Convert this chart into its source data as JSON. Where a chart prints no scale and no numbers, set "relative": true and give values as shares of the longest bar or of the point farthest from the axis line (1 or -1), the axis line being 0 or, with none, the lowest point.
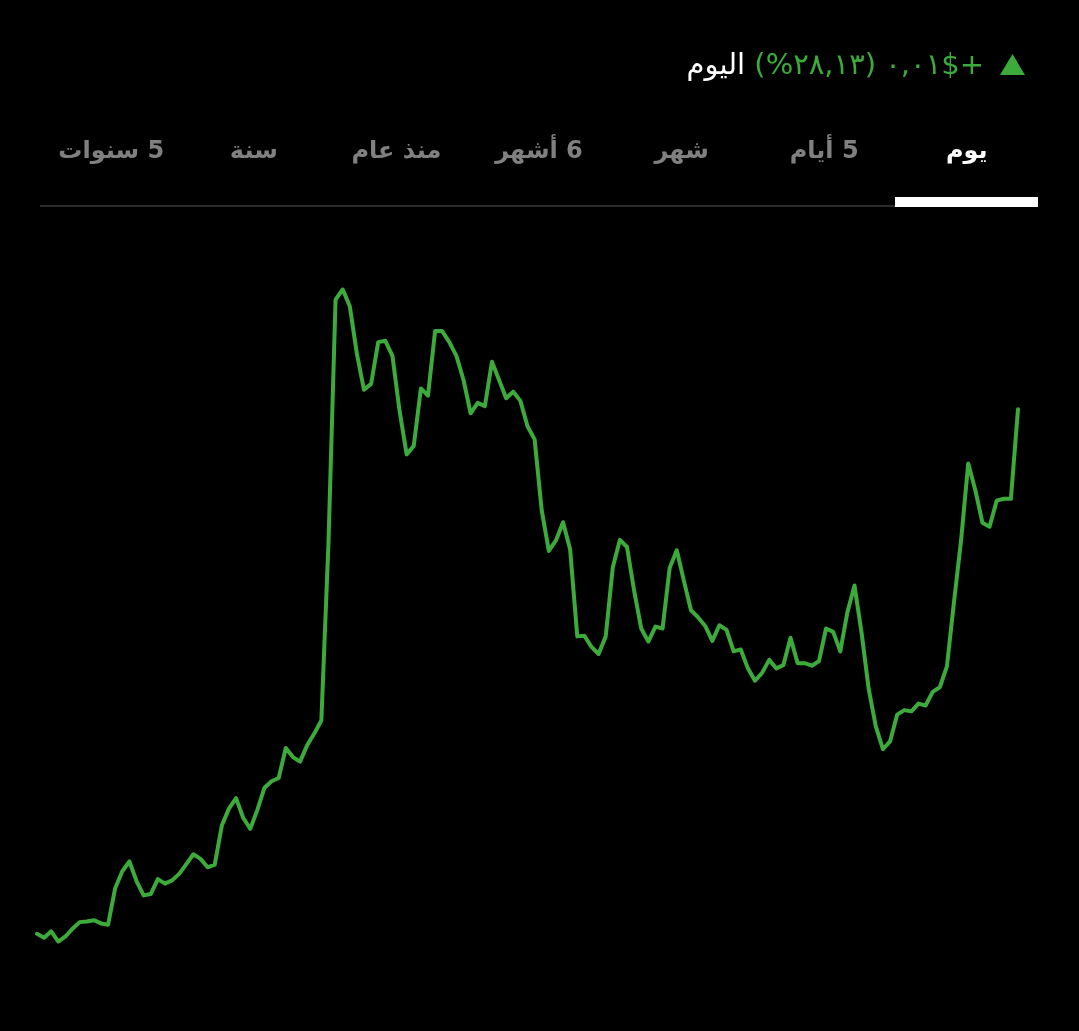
{
  "chart_data": {
    "type": "line",
    "relative": true,
    "title": "+$٠,٠١ (٢٨,١٣%) اليوم",
    "annotations": [
      "يوم",
      "5 أيام",
      "شهر",
      "6 أشهر",
      "منذ عام",
      "سنة",
      "5 سنوات"
    ],
    "color": "#3cab3c",
    "categories": [
      null,
      null,
      null,
      null,
      null,
      null,
      null,
      null,
      null,
      null,
      null,
      null,
      null,
      null,
      null,
      null,
      null,
      null,
      null,
      null,
      null,
      null,
      null,
      null,
      null,
      null,
      null,
      null,
      null,
      null,
      null,
      null,
      null,
      null,
      null,
      null,
      null,
      null,
      null,
      null,
      null,
      null,
      null,
      null,
      null,
      null,
      null,
      null,
      null,
      null,
      null,
      null,
      null,
      null,
      null,
      null,
      null,
      null,
      null,
      null,
      null,
      null,
      null,
      null,
      null,
      null,
      null,
      null,
      null,
      null,
      null,
      null,
      null,
      null,
      null,
      null,
      null,
      null,
      null,
      null,
      null,
      null,
      null,
      null,
      null,
      null,
      null,
      null,
      null,
      null,
      null,
      null,
      null,
      null,
      null,
      null,
      null,
      null,
      null,
      null,
      null,
      null,
      null,
      null,
      null,
      null,
      null,
      null,
      null,
      null,
      null,
      null,
      null,
      null,
      null,
      null,
      null,
      null,
      null,
      null,
      null,
      null,
      null,
      null,
      null,
      null,
      null,
      null,
      null,
      null,
      null,
      null,
      null,
      null,
      null,
      null,
      null,
      null,
      null
    ],
    "values": [
      0.012,
      0.006,
      0.016,
      0,
      0.008,
      0.02,
      0.03,
      0.031,
      0.033,
      0.028,
      0.026,
      0.082,
      0.108,
      0.123,
      0.093,
      0.071,
      0.073,
      0.096,
      0.089,
      0.094,
      0.104,
      0.119,
      0.134,
      0.127,
      0.114,
      0.118,
      0.178,
      0.204,
      0.22,
      0.19,
      0.173,
      0.202,
      0.236,
      0.246,
      0.251,
      0.297,
      0.283,
      0.276,
      0.301,
      0.319,
      0.339,
      0.611,
      0.984,
      1,
      0.974,
      0.901,
      0.846,
      0.855,
      0.919,
      0.921,
      0.898,
      0.814,
      0.747,
      0.76,
      0.848,
      0.837,
      0.936,
      0.936,
      0.919,
      0.898,
      0.861,
      0.81,
      0.826,
      0.821,
      0.889,
      0.861,
      0.833,
      0.843,
      0.829,
      0.79,
      0.77,
      0.661,
      0.599,
      0.615,
      0.643,
      0.601,
      0.468,
      0.469,
      0.452,
      0.441,
      0.468,
      0.574,
      0.616,
      0.605,
      0.538,
      0.48,
      0.46,
      0.483,
      0.48,
      0.573,
      0.6,
      0.553,
      0.508,
      0.497,
      0.484,
      0.461,
      0.485,
      0.478,
      0.445,
      0.448,
      0.419,
      0.4,
      0.412,
      0.432,
      0.419,
      0.424,
      0.466,
      0.427,
      0.427,
      0.423,
      0.43,
      0.48,
      0.475,
      0.445,
      0.505,
      0.546,
      0.473,
      0.387,
      0.33,
      0.295,
      0.307,
      0.348,
      0.355,
      0.353,
      0.365,
      0.362,
      0.383,
      0.39,
      0.422,
      0.521,
      0.616,
      0.733,
      0.692,
      0.642,
      0.636,
      0.676,
      0.679,
      0.679,
      0.816
    ]
  }
}
